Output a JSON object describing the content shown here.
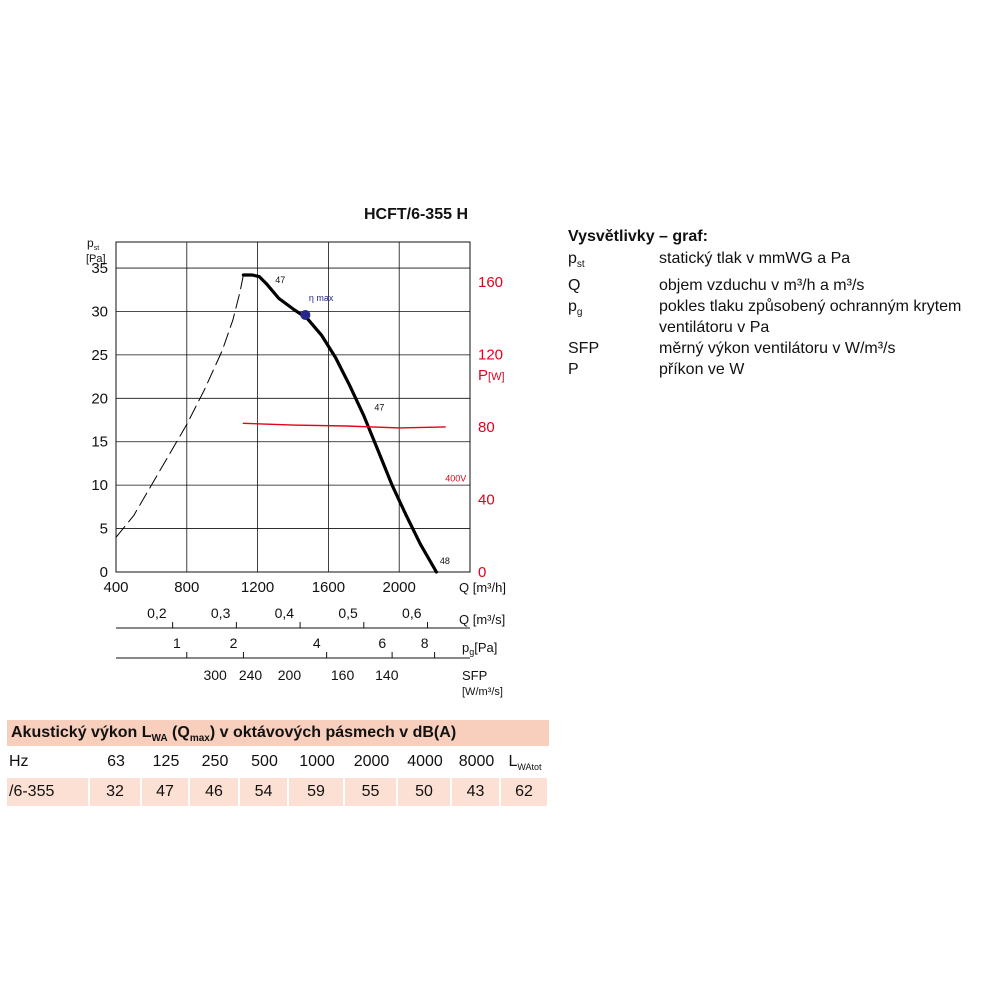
{
  "chart_data": {
    "type": "line",
    "title": "HCFT/6-355 H",
    "y_left": {
      "label": "p",
      "label_sub": "st",
      "unit": "[Pa]",
      "ticks": [
        0,
        5,
        10,
        15,
        20,
        25,
        30,
        35
      ],
      "range": [
        0,
        38
      ]
    },
    "y_right": {
      "label": "P",
      "unit": "[W]",
      "ticks": [
        0,
        40,
        80,
        120,
        160
      ],
      "range": [
        0,
        182
      ],
      "color": "#e5001c"
    },
    "x": {
      "label": "Q [m³/h]",
      "ticks": [
        400,
        800,
        1200,
        1600,
        2000
      ],
      "range": [
        400,
        2400
      ]
    },
    "secondary_axes": [
      {
        "label": "Q [m³/s]",
        "tick_labels": [
          "0,2",
          "0,3",
          "0,4",
          "0,5",
          "0,6"
        ],
        "tick_at_m3h": [
          720,
          1080,
          1440,
          1800,
          2160
        ]
      },
      {
        "label": "p",
        "label_sub": "g",
        "unit": "[Pa]",
        "tick_labels": [
          "1",
          "2",
          "4",
          "6",
          "8"
        ],
        "tick_at_m3h": [
          800,
          1120,
          1590,
          1960,
          2200
        ]
      },
      {
        "label": "SFP",
        "unit": "[W/m³/s]",
        "tick_labels": [
          "300",
          "240",
          "200",
          "160",
          "140"
        ],
        "tick_at_m3h": [
          960,
          1160,
          1380,
          1680,
          1930
        ]
      }
    ],
    "series": [
      {
        "name": "47",
        "style": "solid",
        "color": "#000000",
        "points": [
          [
            1120,
            34.2
          ],
          [
            1170,
            34.2
          ],
          [
            1210,
            34.0
          ],
          [
            1250,
            33.2
          ],
          [
            1320,
            31.5
          ],
          [
            1400,
            30.3
          ],
          [
            1480,
            29.2
          ],
          [
            1560,
            27.3
          ],
          [
            1640,
            24.7
          ],
          [
            1720,
            21.5
          ],
          [
            1800,
            18.0
          ],
          [
            1880,
            14.0
          ],
          [
            1960,
            10.0
          ],
          [
            2040,
            6.5
          ],
          [
            2120,
            3.2
          ],
          [
            2210,
            0.0
          ]
        ]
      },
      {
        "name": "",
        "style": "dashed",
        "color": "#000000",
        "points": [
          [
            400,
            4.0
          ],
          [
            500,
            6.5
          ],
          [
            600,
            10.0
          ],
          [
            700,
            13.5
          ],
          [
            800,
            17.0
          ],
          [
            900,
            21.0
          ],
          [
            1000,
            25.5
          ],
          [
            1060,
            29.0
          ],
          [
            1100,
            32.2
          ],
          [
            1120,
            34.2
          ]
        ]
      },
      {
        "name": "400V",
        "style": "solid",
        "axis": "right",
        "color": "#e5001c",
        "points": [
          [
            1120,
            82
          ],
          [
            1400,
            81
          ],
          [
            1700,
            80.5
          ],
          [
            2000,
            79.5
          ],
          [
            2260,
            80
          ]
        ]
      }
    ],
    "annotations": [
      {
        "text": "47",
        "x": 1300,
        "y": 33.3
      },
      {
        "text": "47",
        "x": 1860,
        "y": 18.6
      },
      {
        "text": "48",
        "x": 2230,
        "y": 0.9
      },
      {
        "text": "400V",
        "x": 2260,
        "y": 10.4,
        "color": "#e5001c"
      },
      {
        "text": "η max",
        "x": 1490,
        "y": 31.2,
        "color": "#27268c"
      }
    ],
    "eta_max_point": {
      "x": 1470,
      "y": 29.6,
      "color": "#27268c"
    },
    "grid": true
  },
  "legend": {
    "title": "Vysvětlivky – graf:",
    "items": [
      {
        "symbol": "p",
        "symbol_sub": "st",
        "description": "statický tlak v mmWG a Pa"
      },
      {
        "symbol": "Q",
        "symbol_sub": "",
        "description": "objem vzduchu v m³/h a m³/s"
      },
      {
        "symbol": "p",
        "symbol_sub": "g",
        "description": "pokles tlaku způsobený ochranným krytem ventilátoru v Pa"
      },
      {
        "symbol": "SFP",
        "symbol_sub": "",
        "description": "měrný výkon ventilátoru v W/m³/s"
      },
      {
        "symbol": "P",
        "symbol_sub": "",
        "description": "příkon ve W"
      }
    ]
  },
  "acoustic": {
    "title_part1": "Akustický výkon L",
    "title_sub1": "WA",
    "title_part2": " (Q",
    "title_sub2": "max",
    "title_part3": ") v oktávových pásmech v dB(A)",
    "header": [
      "Hz",
      "63",
      "125",
      "250",
      "500",
      "1000",
      "2000",
      "4000",
      "8000",
      "L"
    ],
    "header_last_sub": "WAtot",
    "row": [
      "/6-355",
      "32",
      "47",
      "46",
      "54",
      "59",
      "55",
      "50",
      "43",
      "62"
    ]
  },
  "colors": {
    "red": "#e5001c",
    "navy": "#27268c",
    "band": "#f8cfbd",
    "band_light": "#fbe0d3"
  }
}
